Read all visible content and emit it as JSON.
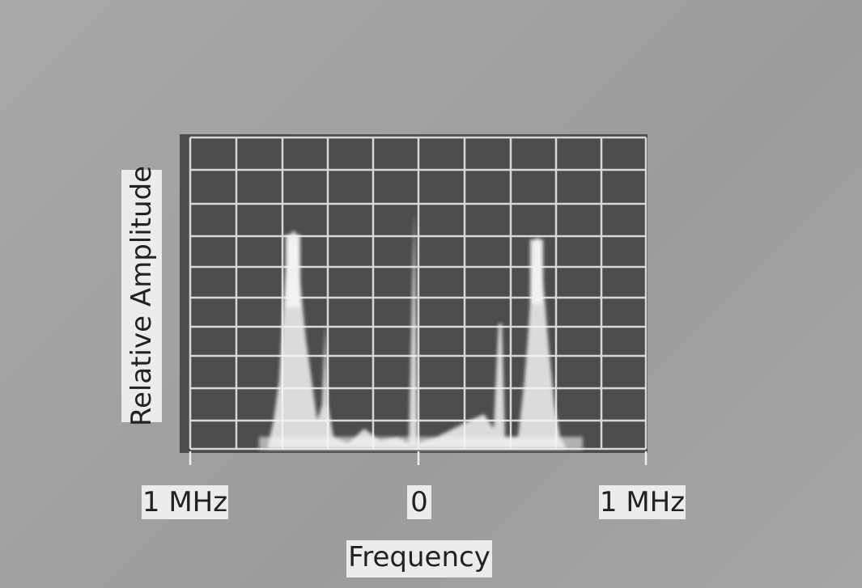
{
  "axis_labels": {
    "y": "Relative Amplitude",
    "x": "Frequency"
  },
  "x_tick_labels": [
    "1 MHz",
    "0",
    "1 MHz"
  ]
}
